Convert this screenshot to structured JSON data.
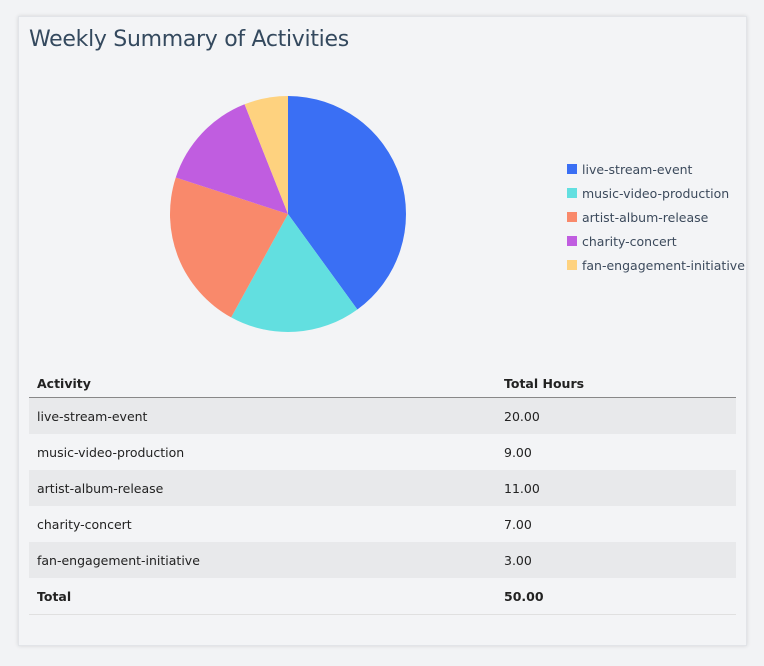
{
  "title": "Weekly Summary of Activities",
  "chart_data": {
    "type": "pie",
    "categories": [
      "live-stream-event",
      "music-video-production",
      "artist-album-release",
      "charity-concert",
      "fan-engagement-initiative"
    ],
    "values": [
      20,
      9,
      11,
      7,
      3
    ],
    "colors": [
      "#3a6ff4",
      "#62dfe0",
      "#f9896b",
      "#c05de0",
      "#fed27f"
    ],
    "legend_position": "right"
  },
  "table": {
    "headers": [
      "Activity",
      "Total Hours"
    ],
    "rows": [
      [
        "live-stream-event",
        "20.00"
      ],
      [
        "music-video-production",
        "9.00"
      ],
      [
        "artist-album-release",
        "11.00"
      ],
      [
        "charity-concert",
        "7.00"
      ],
      [
        "fan-engagement-initiative",
        "3.00"
      ]
    ],
    "total": [
      "Total",
      "50.00"
    ]
  }
}
